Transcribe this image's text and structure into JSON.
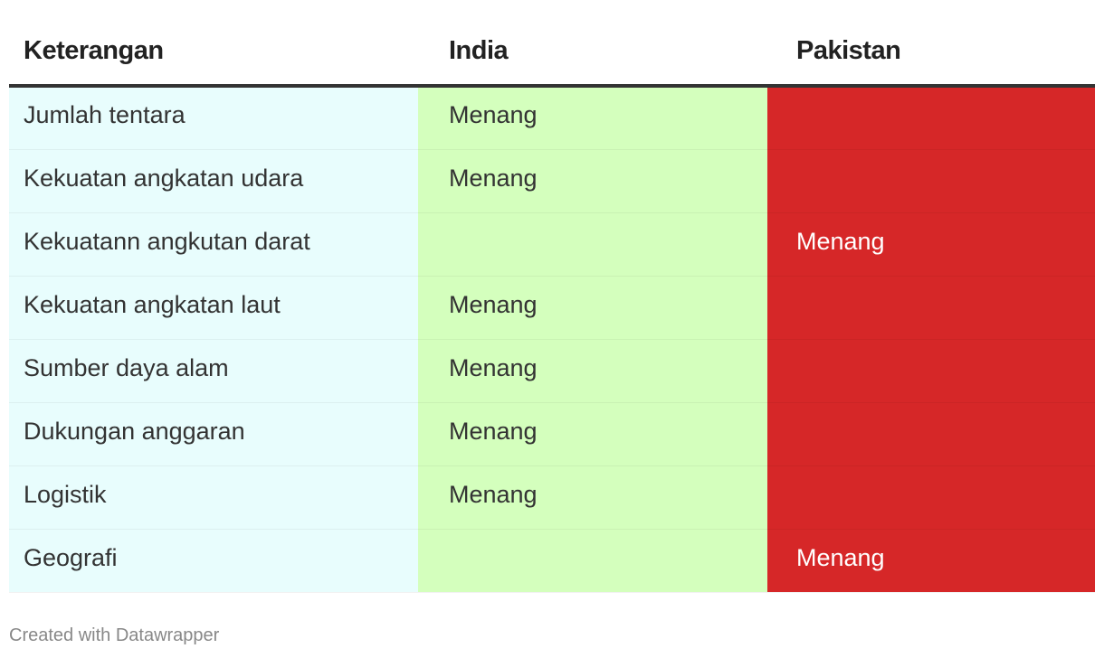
{
  "chart_data": {
    "type": "table",
    "columns": [
      "Keterangan",
      "India",
      "Pakistan"
    ],
    "rows": [
      [
        "Jumlah tentara",
        "Menang",
        ""
      ],
      [
        "Kekuatan angkatan udara",
        "Menang",
        ""
      ],
      [
        "Kekuatann angkutan darat",
        "",
        "Menang"
      ],
      [
        "Kekuatan angkatan laut",
        "Menang",
        ""
      ],
      [
        "Sumber daya alam",
        "Menang",
        ""
      ],
      [
        "Dukungan anggaran",
        "Menang",
        ""
      ],
      [
        "Logistik",
        "Menang",
        ""
      ],
      [
        "Geografi",
        "",
        "Menang"
      ]
    ],
    "column_colors": [
      "#e8fdfd",
      "#d4ffbd",
      "#d62728"
    ]
  },
  "footer": {
    "credit": "Created with Datawrapper"
  }
}
